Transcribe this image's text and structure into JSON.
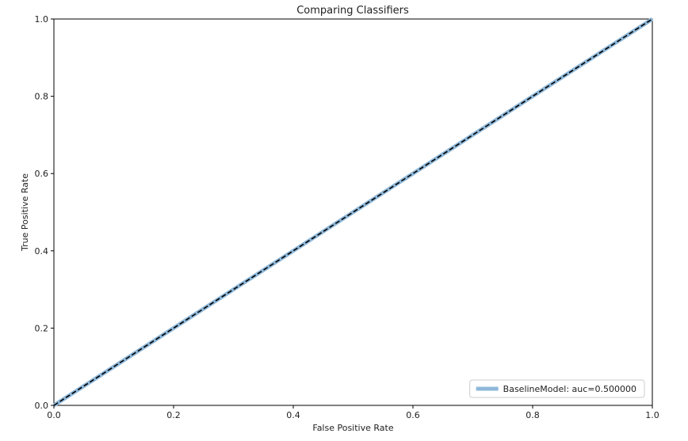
{
  "chart_data": {
    "type": "line",
    "title": "Comparing Classifiers",
    "xlabel": "False Positive Rate",
    "ylabel": "True Positive Rate",
    "xlim": [
      0.0,
      1.0
    ],
    "ylim": [
      0.0,
      1.0
    ],
    "xticks": [
      "0.0",
      "0.2",
      "0.4",
      "0.6",
      "0.8",
      "1.0"
    ],
    "yticks": [
      "0.0",
      "0.2",
      "0.4",
      "0.6",
      "0.8",
      "1.0"
    ],
    "grid": false,
    "legend_position": "lower-right",
    "series": [
      {
        "name": "BaselineModel: auc=0.500000",
        "x": [
          0.0,
          1.0
        ],
        "y": [
          0.0,
          1.0
        ],
        "color": "#8fb8d9",
        "style": "solid"
      }
    ],
    "reference_line": {
      "x": [
        0.0,
        1.0
      ],
      "y": [
        0.0,
        1.0
      ],
      "color": "#000000",
      "style": "dashed"
    }
  }
}
